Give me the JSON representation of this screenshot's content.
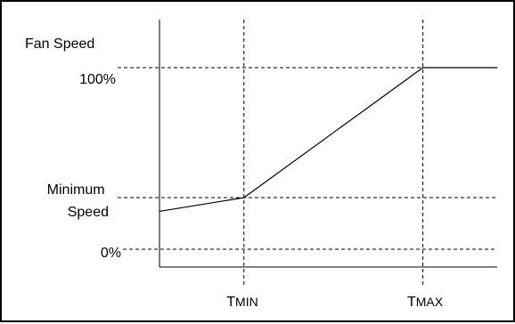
{
  "chart_data": {
    "type": "line",
    "ylabel": "Fan Speed",
    "y_tick_labels": [
      "100%",
      "Minimum Speed",
      "0%"
    ],
    "y_levels": {
      "full": 100,
      "minimum": 30,
      "zero": 0
    },
    "x_tick_labels": [
      "TMIN",
      "TMAX"
    ],
    "x_tick_parts": [
      {
        "big": "T",
        "small": "MIN"
      },
      {
        "big": "T",
        "small": "MAX"
      }
    ],
    "series": [
      {
        "x": [
          0.0,
          0.25,
          0.78,
          1.0
        ],
        "y": [
          22,
          30,
          100,
          100
        ]
      }
    ],
    "grid": "dashed reference lines at tick positions",
    "colors": {
      "line": "#000000",
      "dash": "#000000"
    }
  }
}
